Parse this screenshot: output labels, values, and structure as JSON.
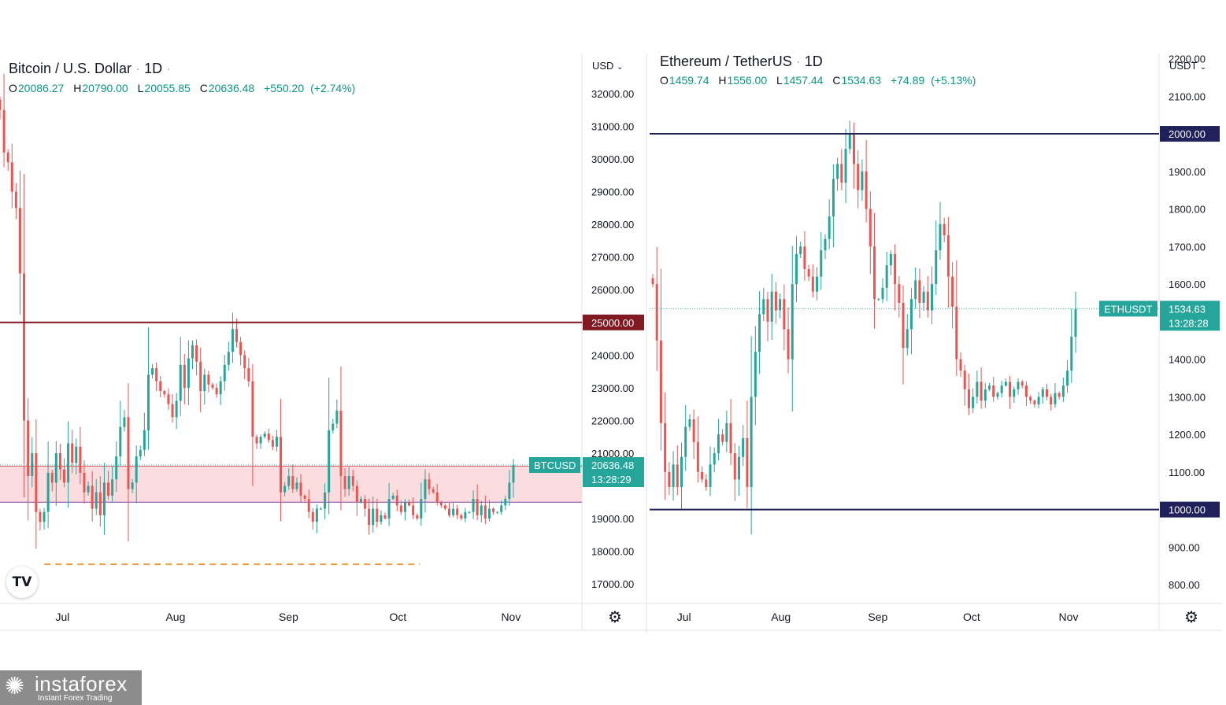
{
  "chart_data": [
    {
      "type": "candlestick",
      "title": "Bitcoin / U.S. Dollar",
      "interval": "1D",
      "ohlc": {
        "o": "20086.27",
        "h": "20790.00",
        "l": "20055.85",
        "c": "20636.48",
        "chg": "+550.20",
        "pct": "(+2.74%)"
      },
      "currency": "USD",
      "y_ticks": [
        "32000.00",
        "31000.00",
        "30000.00",
        "29000.00",
        "28000.00",
        "27000.00",
        "26000.00",
        "24000.00",
        "23000.00",
        "22000.00",
        "21000.00",
        "19000.00",
        "18000.00",
        "17000.00"
      ],
      "ylim": [
        16400,
        33300
      ],
      "x_ticks": [
        {
          "label": "Jul",
          "day": 14
        },
        {
          "label": "Aug",
          "day": 45
        },
        {
          "label": "Sep",
          "day": 76
        },
        {
          "label": "Oct",
          "day": 106
        },
        {
          "label": "Nov",
          "day": 137
        }
      ],
      "levels": [
        {
          "value": 25000,
          "label": "25000.00",
          "color": "#801922"
        }
      ],
      "zone": [
        19500,
        20600
      ],
      "support_line": 17600,
      "last": {
        "symbol": "BTCUSD",
        "price": "20636.48",
        "countdown": "13:28:29",
        "value": 20636.48
      },
      "closes": [
        31500,
        30200,
        29900,
        29000,
        28500,
        26500,
        22000,
        20300,
        21000,
        19200,
        18900,
        19200,
        20400,
        20100,
        21000,
        20500,
        20100,
        21300,
        20700,
        21200,
        20400,
        19800,
        20000,
        19300,
        19800,
        19100,
        20100,
        19700,
        20200,
        20900,
        21800,
        22100,
        19900,
        20100,
        20900,
        21100,
        21700,
        23400,
        23600,
        23200,
        22900,
        22800,
        22500,
        22100,
        22600,
        23700,
        23000,
        23900,
        24300,
        23800,
        22900,
        23400,
        23100,
        23000,
        22800,
        23200,
        23700,
        24100,
        24800,
        24400,
        24000,
        23600,
        23200,
        21500,
        21300,
        21500,
        21600,
        21400,
        21200,
        21500,
        19800,
        20000,
        20300,
        19900,
        20100,
        19700,
        19600,
        19200,
        18900,
        19300,
        19300,
        19800,
        21700,
        21900,
        22300,
        20300,
        19900,
        20300,
        20000,
        19500,
        19600,
        19300,
        18800,
        19300,
        18900,
        19100,
        19000,
        19600,
        19700,
        19400,
        19200,
        19500,
        19400,
        19100,
        19000,
        19600,
        20200,
        19900,
        19800,
        19500,
        19400,
        19300,
        19100,
        19300,
        19100,
        19000,
        19200,
        19200,
        19600,
        19100,
        19400,
        19000,
        19300,
        19200,
        19200,
        19400,
        19600,
        20100,
        20636
      ]
    },
    {
      "type": "candlestick",
      "title": "Ethereum / TetherUS",
      "interval": "1D",
      "ohlc": {
        "o": "1459.74",
        "h": "1556.00",
        "l": "1457.44",
        "c": "1534.63",
        "chg": "+74.89",
        "pct": "(+5.13%)"
      },
      "currency": "USDT",
      "y_ticks": [
        "2200.00",
        "2100.00",
        "1900.00",
        "1800.00",
        "1700.00",
        "1600.00",
        "1400.00",
        "1300.00",
        "1200.00",
        "1100.00",
        "900.00",
        "800.00"
      ],
      "ylim": [
        750,
        2220
      ],
      "x_ticks": [
        {
          "label": "Jul",
          "day": 10
        },
        {
          "label": "Aug",
          "day": 41
        },
        {
          "label": "Sep",
          "day": 72
        },
        {
          "label": "Oct",
          "day": 102
        },
        {
          "label": "Nov",
          "day": 133
        }
      ],
      "levels": [
        {
          "value": 2000,
          "label": "2000.00",
          "color": "#20205a"
        },
        {
          "value": 1000,
          "label": "1000.00",
          "color": "#20205a"
        }
      ],
      "last": {
        "symbol": "ETHUSDT",
        "price": "1534.63",
        "countdown": "13:28:28",
        "value": 1534.63
      },
      "closes": [
        1600,
        1450,
        1230,
        1100,
        1060,
        1120,
        1060,
        1140,
        1220,
        1240,
        1180,
        1100,
        1080,
        1060,
        1120,
        1150,
        1200,
        1180,
        1230,
        1150,
        1080,
        1140,
        1190,
        1060,
        1300,
        1420,
        1520,
        1560,
        1500,
        1580,
        1530,
        1560,
        1480,
        1400,
        1600,
        1680,
        1700,
        1640,
        1620,
        1580,
        1620,
        1690,
        1720,
        1780,
        1880,
        1920,
        1870,
        1960,
        2000,
        1920,
        1850,
        1900,
        1800,
        1700,
        1560,
        1560,
        1590,
        1650,
        1680,
        1600,
        1550,
        1430,
        1480,
        1560,
        1610,
        1550,
        1580,
        1530,
        1600,
        1690,
        1760,
        1730,
        1620,
        1540,
        1400,
        1370,
        1320,
        1270,
        1300,
        1340,
        1290,
        1320,
        1330,
        1300,
        1310,
        1330,
        1340,
        1300,
        1320,
        1340,
        1330,
        1300,
        1290,
        1280,
        1300,
        1320,
        1300,
        1280,
        1310,
        1300,
        1330,
        1370,
        1460,
        1534
      ]
    }
  ],
  "brand": {
    "name": "instaforex",
    "tagline": "Instant Forex Trading"
  },
  "icons": {
    "logo": "tradingview-logo-icon",
    "settings": "gear-icon"
  }
}
